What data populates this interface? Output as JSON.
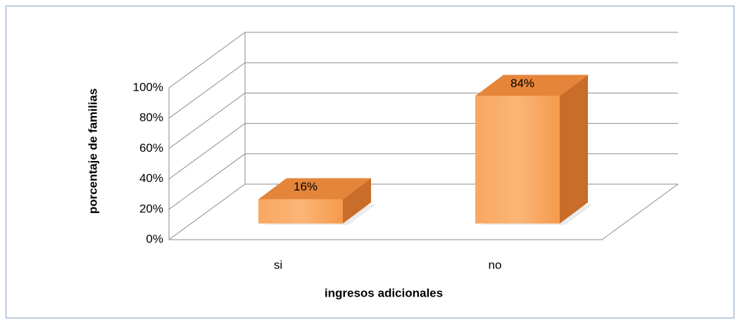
{
  "chart_data": {
    "type": "bar3d",
    "categories": [
      "si",
      "no"
    ],
    "values": [
      16,
      84
    ],
    "value_labels": [
      "16%",
      "84%"
    ],
    "color": "#f79646",
    "ylim": [
      0,
      100
    ],
    "yticks": [
      {
        "value": 0,
        "label": "0%"
      },
      {
        "value": 20,
        "label": "20%"
      },
      {
        "value": 40,
        "label": "40%"
      },
      {
        "value": 60,
        "label": "60%"
      },
      {
        "value": 80,
        "label": "80%"
      },
      {
        "value": 100,
        "label": "100%"
      }
    ],
    "ylabel": "porcentaje de familias",
    "xlabel": "ingresos adicionales",
    "grid": true
  }
}
